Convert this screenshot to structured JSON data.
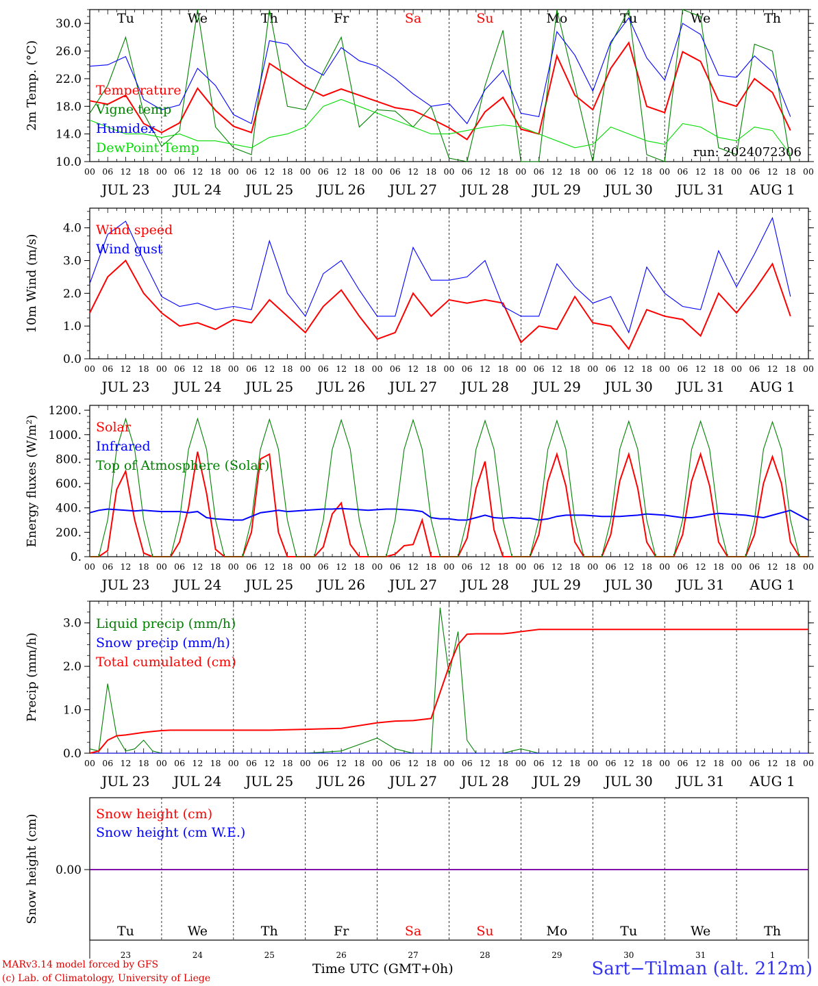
{
  "days": [
    {
      "abbr": "Tu",
      "date": "JUL 23",
      "num": "23",
      "weekend": false
    },
    {
      "abbr": "We",
      "date": "JUL 24",
      "num": "24",
      "weekend": false
    },
    {
      "abbr": "Th",
      "date": "JUL 25",
      "num": "25",
      "weekend": false
    },
    {
      "abbr": "Fr",
      "date": "JUL 26",
      "num": "26",
      "weekend": false
    },
    {
      "abbr": "Sa",
      "date": "JUL 27",
      "num": "27",
      "weekend": true
    },
    {
      "abbr": "Su",
      "date": "JUL 28",
      "num": "28",
      "weekend": true
    },
    {
      "abbr": "Mo",
      "date": "JUL 29",
      "num": "29",
      "weekend": false
    },
    {
      "abbr": "Tu",
      "date": "JUL 30",
      "num": "30",
      "weekend": false
    },
    {
      "abbr": "We",
      "date": "JUL 31",
      "num": "31",
      "weekend": false
    },
    {
      "abbr": "Th",
      "date": "AUG  1",
      "num": "1",
      "weekend": false
    }
  ],
  "hour_ticks": [
    "00",
    "06",
    "12",
    "18"
  ],
  "colors": {
    "red": "#ff0000",
    "green": "#008000",
    "blue": "#0000ff",
    "lightgreen": "#00dd00",
    "purple": "#8000a0",
    "weekend": "#ff0000"
  },
  "footer": {
    "model": "MARv3.14 model forced by GFS",
    "credit": "(c) Lab. of Climatology, University of Liege",
    "time_axis": "Time UTC (GMT+0h)",
    "station": "Sart−Tilman (alt. 212m)"
  },
  "chart_data": [
    {
      "type": "line",
      "ylabel": "2m Temp. (°C)",
      "ylim": [
        10,
        32
      ],
      "yticks": [
        "10.0",
        "14.0",
        "18.0",
        "22.0",
        "26.0",
        "30.0"
      ],
      "annotation": "run: 2024072306",
      "x_hours": [
        0,
        6,
        12,
        18,
        24,
        30,
        36,
        42,
        48,
        54,
        60,
        66,
        72,
        78,
        84,
        90,
        96,
        102,
        108,
        114,
        120,
        126,
        132,
        138,
        144,
        150,
        156,
        162,
        168,
        174,
        180,
        186,
        192,
        198,
        204,
        210,
        216,
        222,
        228,
        234
      ],
      "series": [
        {
          "name": "Temperature",
          "color": "red",
          "values": [
            18.8,
            18.3,
            19.6,
            15.5,
            14.2,
            15.6,
            20.6,
            17.4,
            15.1,
            14.2,
            24.2,
            22.5,
            20.8,
            19.5,
            20.5,
            19.6,
            18.7,
            17.8,
            17.4,
            16.2,
            14.9,
            13.2,
            17.2,
            19.3,
            14.7,
            14.0,
            25.3,
            19.6,
            17.5,
            23.5,
            27.2,
            18.0,
            17.1,
            25.9,
            24.5,
            18.8,
            18.0,
            22.0,
            20.0,
            14.5
          ]
        },
        {
          "name": "Vigne temp",
          "color": "green",
          "values": [
            17.0,
            21.0,
            28.0,
            17.0,
            12.2,
            14.5,
            32.0,
            15.0,
            12.0,
            11.0,
            32.0,
            18.0,
            17.5,
            23.0,
            28.0,
            15.0,
            17.5,
            17.3,
            15.0,
            18.0,
            10.5,
            10.0,
            21.0,
            29.0,
            10.0,
            10.0,
            32.0,
            21.0,
            10.0,
            27.0,
            32.0,
            11.0,
            10.0,
            32.0,
            31.0,
            12.0,
            11.0,
            27.0,
            26.0,
            10.0
          ]
        },
        {
          "name": "Humidex",
          "color": "blue",
          "values": [
            23.8,
            24.0,
            25.2,
            19.0,
            17.5,
            18.2,
            23.5,
            21.0,
            16.8,
            15.5,
            27.5,
            27.0,
            24.0,
            22.5,
            26.5,
            24.6,
            23.8,
            22.0,
            19.8,
            18.0,
            18.4,
            15.5,
            20.4,
            23.2,
            17.0,
            16.5,
            28.8,
            25.4,
            20.2,
            27.3,
            30.8,
            25.0,
            21.8,
            30.0,
            28.4,
            22.5,
            22.2,
            25.3,
            23.0,
            16.5
          ]
        },
        {
          "name": "DewPoint Temp",
          "color": "lightgreen",
          "values": [
            16.0,
            15.0,
            14.0,
            14.0,
            13.5,
            14.0,
            13.0,
            13.0,
            12.5,
            12.0,
            13.5,
            14.0,
            15.0,
            18.0,
            19.0,
            18.0,
            17.0,
            16.0,
            15.0,
            14.0,
            14.0,
            14.5,
            15.0,
            15.3,
            15.0,
            14.0,
            13.0,
            12.0,
            12.5,
            15.0,
            14.0,
            13.0,
            12.5,
            15.5,
            15.0,
            13.5,
            13.0,
            15.0,
            14.5,
            11.0
          ]
        }
      ]
    },
    {
      "type": "line",
      "ylabel": "10m Wind (m/s)",
      "ylim": [
        0,
        4.6
      ],
      "yticks": [
        "0.0",
        "1.0",
        "2.0",
        "3.0",
        "4.0"
      ],
      "x_hours": [
        0,
        6,
        12,
        18,
        24,
        30,
        36,
        42,
        48,
        54,
        60,
        66,
        72,
        78,
        84,
        90,
        96,
        102,
        108,
        114,
        120,
        126,
        132,
        138,
        144,
        150,
        156,
        162,
        168,
        174,
        180,
        186,
        192,
        198,
        204,
        210,
        216,
        222,
        228,
        234
      ],
      "series": [
        {
          "name": "Wind speed",
          "color": "red",
          "values": [
            1.4,
            2.5,
            3.0,
            2.0,
            1.4,
            1.0,
            1.1,
            0.9,
            1.2,
            1.1,
            1.8,
            1.3,
            0.8,
            1.6,
            2.1,
            1.3,
            0.6,
            0.8,
            2.0,
            1.3,
            1.8,
            1.7,
            1.8,
            1.7,
            0.5,
            1.0,
            0.9,
            1.9,
            1.1,
            1.0,
            0.3,
            1.5,
            1.3,
            1.2,
            0.7,
            2.0,
            1.4,
            2.1,
            2.9,
            1.3
          ]
        },
        {
          "name": "Wind gust",
          "color": "blue",
          "values": [
            2.3,
            3.8,
            4.2,
            3.0,
            1.9,
            1.6,
            1.7,
            1.5,
            1.6,
            1.5,
            3.6,
            2.0,
            1.3,
            2.6,
            3.0,
            2.1,
            1.3,
            1.3,
            3.4,
            2.4,
            2.4,
            2.5,
            3.0,
            1.6,
            1.3,
            1.3,
            2.9,
            2.2,
            1.7,
            1.9,
            0.8,
            2.8,
            2.0,
            1.6,
            1.5,
            3.3,
            2.2,
            3.2,
            4.3,
            1.9
          ]
        }
      ]
    },
    {
      "type": "line",
      "ylabel": "Energy fluxes (W/m²)",
      "ylim": [
        0,
        1240
      ],
      "yticks": [
        "0.",
        "200.",
        "400.",
        "600.",
        "800.",
        "1000.",
        "1200."
      ],
      "x_hours": [
        0,
        3,
        6,
        9,
        12,
        15,
        18,
        21,
        24,
        27,
        30,
        33,
        36,
        39,
        42,
        45,
        48,
        51,
        54,
        57,
        60,
        63,
        66,
        69,
        72,
        75,
        78,
        81,
        84,
        87,
        90,
        93,
        96,
        99,
        102,
        105,
        108,
        111,
        114,
        117,
        120,
        123,
        126,
        129,
        132,
        135,
        138,
        141,
        144,
        147,
        150,
        153,
        156,
        159,
        162,
        165,
        168,
        171,
        174,
        177,
        180,
        183,
        186,
        189,
        192,
        195,
        198,
        201,
        204,
        207,
        210,
        213,
        216,
        219,
        222,
        225,
        228,
        231,
        234,
        237,
        240
      ],
      "series": [
        {
          "name": "Solar",
          "color": "red",
          "values": [
            0,
            0,
            50,
            550,
            700,
            300,
            30,
            0,
            0,
            0,
            120,
            400,
            860,
            520,
            60,
            0,
            0,
            0,
            200,
            800,
            840,
            200,
            0,
            0,
            0,
            0,
            80,
            350,
            440,
            100,
            0,
            0,
            0,
            0,
            20,
            90,
            100,
            300,
            0,
            0,
            0,
            0,
            150,
            560,
            780,
            220,
            0,
            0,
            0,
            0,
            180,
            620,
            840,
            580,
            120,
            0,
            0,
            0,
            180,
            620,
            840,
            560,
            120,
            0,
            0,
            0,
            180,
            620,
            840,
            580,
            120,
            0,
            0,
            0,
            180,
            600,
            820,
            600,
            120,
            0,
            0
          ]
        },
        {
          "name": "Infrared",
          "color": "blue",
          "values": [
            360,
            380,
            390,
            385,
            380,
            375,
            380,
            375,
            370,
            370,
            370,
            360,
            370,
            320,
            310,
            305,
            300,
            300,
            330,
            360,
            370,
            380,
            370,
            375,
            380,
            385,
            390,
            390,
            395,
            390,
            385,
            380,
            385,
            390,
            390,
            385,
            380,
            370,
            320,
            310,
            310,
            300,
            300,
            320,
            340,
            320,
            315,
            320,
            315,
            315,
            300,
            310,
            330,
            340,
            340,
            340,
            335,
            330,
            330,
            330,
            335,
            340,
            350,
            345,
            340,
            330,
            320,
            320,
            330,
            345,
            355,
            350,
            345,
            340,
            330,
            320,
            340,
            360,
            380,
            340,
            300
          ]
        },
        {
          "name": "Top of Atmosphere (Solar)",
          "color": "green",
          "values": [
            0,
            0,
            300,
            880,
            1130,
            880,
            300,
            0,
            0,
            0,
            300,
            880,
            1130,
            880,
            300,
            0,
            0,
            0,
            300,
            880,
            1125,
            880,
            300,
            0,
            0,
            0,
            300,
            880,
            1120,
            880,
            300,
            0,
            0,
            0,
            300,
            880,
            1120,
            880,
            300,
            0,
            0,
            0,
            300,
            880,
            1115,
            880,
            300,
            0,
            0,
            0,
            300,
            880,
            1115,
            880,
            300,
            0,
            0,
            0,
            300,
            880,
            1110,
            880,
            300,
            0,
            0,
            0,
            300,
            880,
            1110,
            880,
            300,
            0,
            0,
            0,
            300,
            880,
            1105,
            880,
            300,
            0,
            0
          ]
        }
      ]
    },
    {
      "type": "line",
      "ylabel": "Precip (mm/h)",
      "ylim": [
        0,
        3.5
      ],
      "yticks": [
        "0.0",
        "1.0",
        "2.0",
        "3.0"
      ],
      "x_hours": [
        0,
        3,
        6,
        9,
        12,
        15,
        18,
        21,
        24,
        27,
        30,
        36,
        48,
        60,
        72,
        84,
        96,
        102,
        108,
        114,
        117,
        120,
        123,
        126,
        129,
        132,
        135,
        138,
        141,
        144,
        150,
        156,
        162,
        168,
        180,
        192,
        204,
        216,
        228,
        240
      ],
      "series": [
        {
          "name": "Liquid precip (mm/h)",
          "color": "green",
          "values": [
            0.1,
            0.05,
            1.6,
            0.4,
            0.05,
            0.1,
            0.3,
            0.05,
            0,
            0,
            0,
            0,
            0,
            0,
            0,
            0.05,
            0.35,
            0.1,
            0,
            0,
            3.35,
            1.8,
            2.8,
            0.3,
            0,
            0,
            0,
            0,
            0.05,
            0.1,
            0,
            0,
            0,
            0,
            0,
            0,
            0,
            0,
            0,
            0
          ]
        },
        {
          "name": "Snow precip (mm/h)",
          "color": "blue",
          "values": [
            0,
            0,
            0,
            0,
            0,
            0,
            0,
            0,
            0,
            0,
            0,
            0,
            0,
            0,
            0,
            0,
            0,
            0,
            0,
            0,
            0,
            0,
            0,
            0,
            0,
            0,
            0,
            0,
            0,
            0,
            0,
            0,
            0,
            0,
            0,
            0,
            0,
            0,
            0,
            0
          ]
        },
        {
          "name": "Total cumulated (cm)",
          "color": "red",
          "values": [
            0,
            0.05,
            0.3,
            0.4,
            0.42,
            0.45,
            0.48,
            0.5,
            0.52,
            0.53,
            0.53,
            0.53,
            0.53,
            0.53,
            0.55,
            0.57,
            0.7,
            0.74,
            0.75,
            0.8,
            1.4,
            2.0,
            2.5,
            2.74,
            2.75,
            2.75,
            2.75,
            2.75,
            2.77,
            2.8,
            2.85,
            2.85,
            2.85,
            2.85,
            2.85,
            2.85,
            2.85,
            2.85,
            2.85,
            2.85
          ]
        }
      ]
    },
    {
      "type": "line",
      "ylabel": "Snow height (cm)",
      "yticks": [
        "0.00"
      ],
      "series": [
        {
          "name": "Snow height (cm)",
          "color": "red",
          "values": [
            0
          ]
        },
        {
          "name": "Snow height (cm W.E.)",
          "color": "blue",
          "values": [
            0
          ]
        }
      ]
    }
  ]
}
